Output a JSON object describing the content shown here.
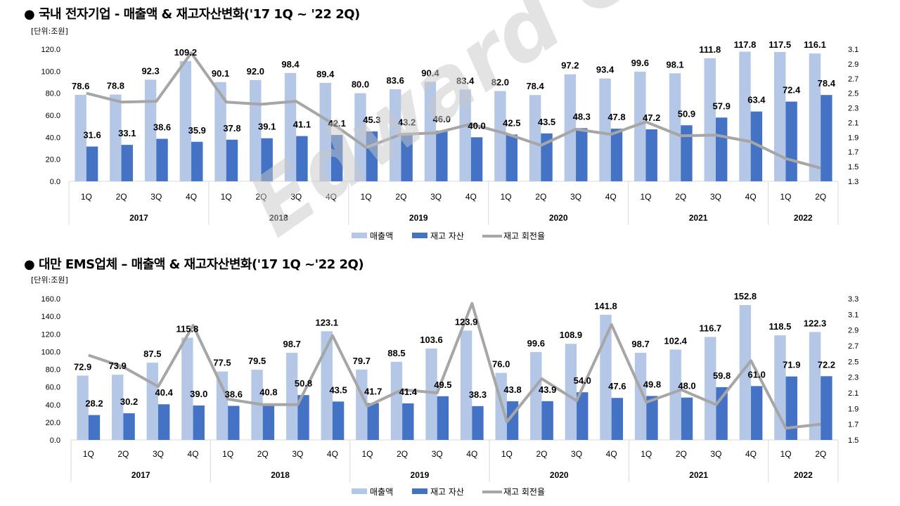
{
  "charts": [
    {
      "title": "● 국내 전자기업 - 매출액 & 재고자산변화('17 1Q ~ '22 2Q)",
      "unit": "[단위:조원]",
      "legend": {
        "sales": "매출액",
        "inventory": "재고 자산",
        "turnover": "재고 회전율"
      }
    },
    {
      "title": "● 대만 EMS업체 – 매출액 & 재고자산변화('17 1Q ~'22 2Q)",
      "unit": "[단위:조원]",
      "legend": {
        "sales": "매출액",
        "inventory": "재고 자산",
        "turnover": "재고 회전율"
      }
    }
  ],
  "watermark": "Edward Choi",
  "colors": {
    "sales": "#b4c7e7",
    "inventory": "#4472c4",
    "turnover": "#a6a6a6"
  },
  "chart_data": [
    {
      "type": "bar",
      "title": "국내 전자기업 - 매출액 & 재고자산변화('17 1Q ~ '22 2Q)",
      "unit": "[단위:조원]",
      "categories": [
        "1Q",
        "2Q",
        "3Q",
        "4Q",
        "1Q",
        "2Q",
        "3Q",
        "4Q",
        "1Q",
        "2Q",
        "3Q",
        "4Q",
        "1Q",
        "2Q",
        "3Q",
        "4Q",
        "1Q",
        "2Q",
        "3Q",
        "4Q",
        "1Q",
        "2Q"
      ],
      "groups": [
        {
          "label": "2017",
          "n": 4
        },
        {
          "label": "2018",
          "n": 4
        },
        {
          "label": "2019",
          "n": 4
        },
        {
          "label": "2020",
          "n": 4
        },
        {
          "label": "2021",
          "n": 4
        },
        {
          "label": "2022",
          "n": 2
        }
      ],
      "series": [
        {
          "name": "매출액",
          "axis": "left",
          "values": [
            78.6,
            78.8,
            92.3,
            109.2,
            90.1,
            92.0,
            98.4,
            89.4,
            80.0,
            83.6,
            90.4,
            83.4,
            82.0,
            78.4,
            97.2,
            93.4,
            99.6,
            98.1,
            111.8,
            117.8,
            117.5,
            116.1
          ]
        },
        {
          "name": "재고 자산",
          "axis": "left",
          "values": [
            31.6,
            33.1,
            38.6,
            35.9,
            37.8,
            39.1,
            41.1,
            42.1,
            45.3,
            43.2,
            46.0,
            40.0,
            42.5,
            43.5,
            48.3,
            47.8,
            47.2,
            50.9,
            57.9,
            63.4,
            72.4,
            78.4
          ]
        },
        {
          "name": "재고 회전율",
          "axis": "right",
          "type": "line",
          "values": [
            2.5,
            2.38,
            2.39,
            3.05,
            2.38,
            2.35,
            2.39,
            2.1,
            1.76,
            1.94,
            1.96,
            2.08,
            1.95,
            1.79,
            2.01,
            1.94,
            2.11,
            1.92,
            1.93,
            1.84,
            1.61,
            1.48
          ]
        }
      ],
      "ylim": [
        0,
        120
      ],
      "yticks": [
        "0.0",
        "20.0",
        "40.0",
        "60.0",
        "80.0",
        "100.0",
        "120.0"
      ],
      "y2lim": [
        1.3,
        3.1
      ],
      "y2ticks": [
        "1.3",
        "1.5",
        "1.7",
        "1.9",
        "2.1",
        "2.3",
        "2.5",
        "2.7",
        "2.9",
        "3.1"
      ],
      "legend_position": "bottom",
      "grid": false
    },
    {
      "type": "bar",
      "title": "대만 EMS업체 – 매출액 & 재고자산변화('17 1Q ~'22 2Q)",
      "unit": "[단위:조원]",
      "categories": [
        "1Q",
        "2Q",
        "3Q",
        "4Q",
        "1Q",
        "2Q",
        "3Q",
        "4Q",
        "1Q",
        "2Q",
        "3Q",
        "4Q",
        "1Q",
        "2Q",
        "3Q",
        "4Q",
        "1Q",
        "2Q",
        "3Q",
        "4Q",
        "1Q",
        "2Q"
      ],
      "groups": [
        {
          "label": "2017",
          "n": 4
        },
        {
          "label": "2018",
          "n": 4
        },
        {
          "label": "2019",
          "n": 4
        },
        {
          "label": "2020",
          "n": 4
        },
        {
          "label": "2021",
          "n": 4
        },
        {
          "label": "2022",
          "n": 2
        }
      ],
      "series": [
        {
          "name": "매출액",
          "axis": "left",
          "values": [
            72.9,
            73.9,
            87.5,
            115.8,
            77.5,
            79.5,
            98.7,
            123.1,
            79.7,
            88.5,
            103.6,
            123.9,
            76.0,
            99.6,
            108.9,
            141.8,
            98.7,
            102.4,
            116.7,
            152.8,
            118.5,
            122.3
          ]
        },
        {
          "name": "재고 자산",
          "axis": "left",
          "values": [
            28.2,
            30.2,
            40.4,
            39.0,
            38.6,
            40.8,
            50.8,
            43.5,
            41.7,
            41.4,
            49.5,
            38.3,
            43.8,
            43.9,
            54.0,
            47.6,
            49.8,
            48.0,
            59.8,
            61.0,
            71.9,
            72.2
          ]
        },
        {
          "name": "재고 회전율",
          "axis": "right",
          "type": "line",
          "values": [
            2.58,
            2.43,
            2.18,
            2.96,
            2.02,
            1.95,
            1.95,
            2.83,
            1.93,
            2.14,
            2.1,
            3.24,
            1.73,
            2.28,
            2.0,
            2.97,
            1.98,
            2.14,
            1.95,
            2.51,
            1.65,
            1.7
          ]
        }
      ],
      "ylim": [
        0,
        160
      ],
      "yticks": [
        "0.0",
        "20.0",
        "40.0",
        "60.0",
        "80.0",
        "100.0",
        "120.0",
        "140.0",
        "160.0"
      ],
      "y2lim": [
        1.5,
        3.3
      ],
      "y2ticks": [
        "1.5",
        "1.7",
        "1.9",
        "2.1",
        "2.3",
        "2.5",
        "2.7",
        "2.9",
        "3.1",
        "3.3"
      ],
      "legend_position": "bottom",
      "grid": false
    }
  ]
}
